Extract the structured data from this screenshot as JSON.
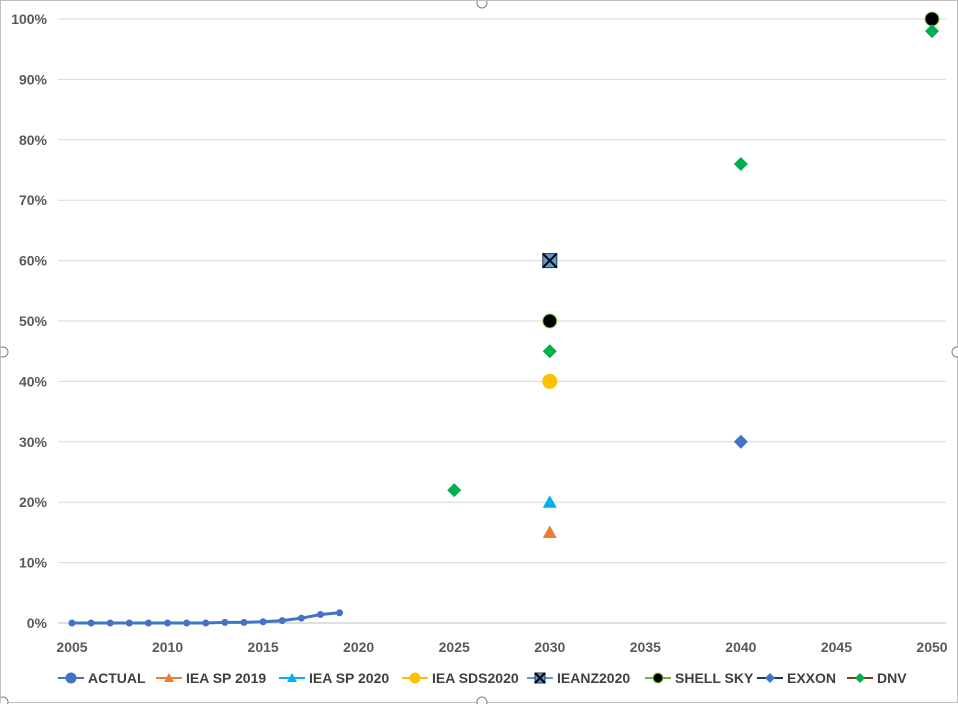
{
  "chart_data": {
    "type": "scatter",
    "x_ticks": [
      "2005",
      "2010",
      "2015",
      "2020",
      "2025",
      "2030",
      "2035",
      "2040",
      "2045",
      "2050"
    ],
    "y_ticks": [
      "0%",
      "10%",
      "20%",
      "30%",
      "40%",
      "50%",
      "60%",
      "70%",
      "80%",
      "90%",
      "100%"
    ],
    "xlim": [
      2005,
      2050
    ],
    "ylim": [
      0,
      100
    ],
    "y_unit": "%",
    "grid": "horizontal",
    "legend_position": "bottom",
    "series": [
      {
        "name": "ACTUAL",
        "color": "#4472C4",
        "marker": "circle",
        "line": true,
        "points": [
          [
            2005,
            0.0
          ],
          [
            2006,
            0.0
          ],
          [
            2007,
            0.0
          ],
          [
            2008,
            0.0
          ],
          [
            2009,
            0.0
          ],
          [
            2010,
            0.0
          ],
          [
            2011,
            0.0
          ],
          [
            2012,
            0.0
          ],
          [
            2013,
            0.1
          ],
          [
            2014,
            0.1
          ],
          [
            2015,
            0.2
          ],
          [
            2016,
            0.4
          ],
          [
            2017,
            0.8
          ],
          [
            2018,
            1.4
          ],
          [
            2019,
            1.7
          ]
        ]
      },
      {
        "name": "IEA SP 2019",
        "color": "#ED7D31",
        "marker": "triangle",
        "points": [
          [
            2030,
            15
          ]
        ]
      },
      {
        "name": "IEA SP 2020",
        "color": "#00B0F0",
        "marker": "triangle",
        "points": [
          [
            2030,
            20
          ]
        ]
      },
      {
        "name": "IEA SDS2020",
        "color": "#FFC000",
        "marker": "circle",
        "points": [
          [
            2030,
            40
          ]
        ]
      },
      {
        "name": "IEANZ2020",
        "color": "#5B9BD5",
        "marker": "square-x",
        "points": [
          [
            2030,
            60
          ]
        ]
      },
      {
        "name": "SHELL SKY",
        "color": "#000000",
        "marker": "circle",
        "points": [
          [
            2030,
            50
          ],
          [
            2050,
            100
          ]
        ]
      },
      {
        "name": "EXXON",
        "color": "#4472C4",
        "marker": "diamond",
        "points": [
          [
            2040,
            30
          ]
        ]
      },
      {
        "name": "DNV",
        "color": "#00B050",
        "marker": "diamond",
        "points": [
          [
            2025,
            22
          ],
          [
            2030,
            45
          ],
          [
            2040,
            76
          ],
          [
            2050,
            98
          ]
        ]
      }
    ]
  }
}
